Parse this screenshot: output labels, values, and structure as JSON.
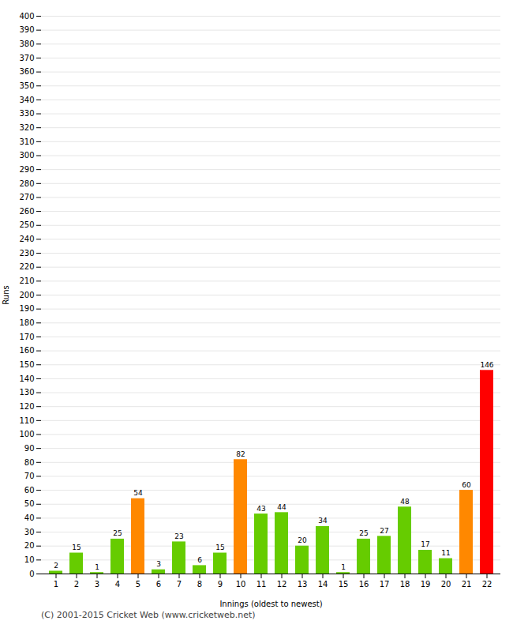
{
  "chart_data": {
    "type": "bar",
    "xlabel": "Innings (oldest to newest)",
    "ylabel": "Runs",
    "categories": [
      1,
      2,
      3,
      4,
      5,
      6,
      7,
      8,
      9,
      10,
      11,
      12,
      13,
      14,
      15,
      16,
      17,
      18,
      19,
      20,
      21,
      22
    ],
    "values": [
      2,
      15,
      1,
      25,
      54,
      3,
      23,
      6,
      15,
      82,
      43,
      44,
      20,
      34,
      1,
      25,
      27,
      48,
      17,
      11,
      60,
      146
    ],
    "colors": [
      "#66cc00",
      "#66cc00",
      "#66cc00",
      "#66cc00",
      "#ff8800",
      "#66cc00",
      "#66cc00",
      "#66cc00",
      "#66cc00",
      "#ff8800",
      "#66cc00",
      "#66cc00",
      "#66cc00",
      "#66cc00",
      "#66cc00",
      "#66cc00",
      "#66cc00",
      "#66cc00",
      "#66cc00",
      "#66cc00",
      "#ff8800",
      "#ff0000"
    ],
    "ylim": [
      0,
      400
    ],
    "yticks": [
      0,
      10,
      20,
      30,
      40,
      50,
      60,
      70,
      80,
      90,
      100,
      110,
      120,
      130,
      140,
      150,
      160,
      170,
      180,
      190,
      200,
      210,
      220,
      230,
      240,
      250,
      260,
      270,
      280,
      290,
      300,
      310,
      320,
      330,
      340,
      350,
      360,
      370,
      380,
      390,
      400
    ],
    "grid": true,
    "data_labels": true,
    "annotations": [
      "(C) 2001-2015 Cricket Web (www.cricketweb.net)"
    ]
  }
}
